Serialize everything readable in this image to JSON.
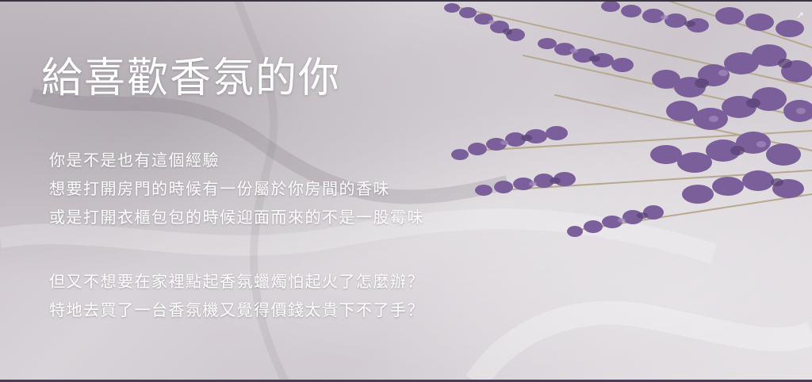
{
  "banner": {
    "title": "給喜歡香氛的你",
    "paragraph1": [
      "你是不是也有這個經驗",
      "想要打開房門的時候有一份屬於你房間的香味",
      "或是打開衣櫃包包的時候迎面而來的不是一股霉味"
    ],
    "paragraph2": [
      "但又不想要在家裡點起香氛蠟燭怕起火了怎麼辦？",
      "特地去買了一台香氛機又覺得價錢太貴下不了手？"
    ],
    "background_colors": {
      "marble": "#d6d0d6",
      "lavender": "#7a5f9a",
      "lavender_dark": "#5a4478",
      "stem": "#b7a98f",
      "text": "#ffffff"
    },
    "icons": {
      "corner": "expand-icon"
    }
  }
}
